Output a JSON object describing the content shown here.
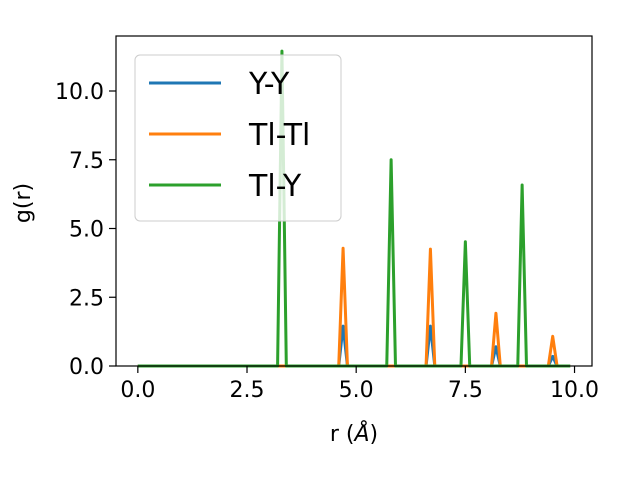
{
  "chart_data": {
    "type": "line",
    "title": "",
    "xlabel": "r (Å)",
    "ylabel": "g(r)",
    "xlim": [
      -0.5,
      10.4
    ],
    "ylim": [
      0,
      12.0
    ],
    "x_ticks": [
      0.0,
      2.5,
      5.0,
      7.5,
      10.0
    ],
    "x_tick_labels": [
      "0.0",
      "2.5",
      "5.0",
      "7.5",
      "10.0"
    ],
    "y_ticks": [
      0.0,
      2.5,
      5.0,
      7.5,
      10.0
    ],
    "y_tick_labels": [
      "0.0",
      "2.5",
      "5.0",
      "7.5",
      "10.0"
    ],
    "grid": false,
    "legend_position": "upper-left",
    "x": [
      0.0,
      3.1,
      3.2,
      3.3,
      3.4,
      3.5,
      4.6,
      4.7,
      4.8,
      5.7,
      5.8,
      5.9,
      6.6,
      6.7,
      6.8,
      7.4,
      7.5,
      7.6,
      8.1,
      8.2,
      8.3,
      8.7,
      8.8,
      8.9,
      9.4,
      9.5,
      9.6,
      9.9
    ],
    "series": [
      {
        "name": "Y-Y",
        "color": "#1f77b4",
        "values": [
          0,
          0,
          0,
          0,
          0,
          0,
          0,
          1.45,
          0,
          0,
          0,
          0,
          0,
          1.45,
          0,
          0,
          0,
          0,
          0,
          0.7,
          0,
          0,
          0,
          0,
          0,
          0.35,
          0,
          0
        ]
      },
      {
        "name": "Tl-Tl",
        "color": "#ff7f0e",
        "values": [
          0,
          0,
          0,
          0,
          0,
          0,
          0,
          4.28,
          0,
          0,
          0,
          0,
          0,
          4.25,
          0,
          0,
          0,
          0,
          0,
          1.92,
          0,
          0,
          0,
          0,
          0,
          1.08,
          0,
          0
        ]
      },
      {
        "name": "Tl-Y",
        "color": "#2ca02c",
        "values": [
          0,
          0,
          0,
          11.45,
          0,
          0,
          0,
          0,
          0,
          0,
          7.5,
          0,
          0,
          0,
          0,
          0,
          4.52,
          0,
          0,
          0,
          0,
          0,
          6.58,
          0,
          0,
          0,
          0,
          0
        ]
      }
    ]
  }
}
